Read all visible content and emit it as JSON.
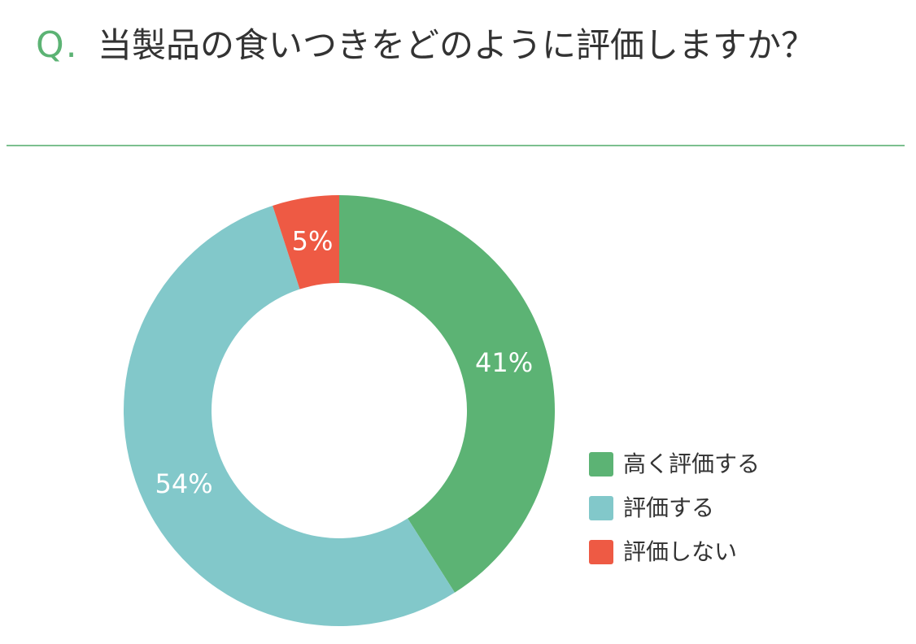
{
  "question": {
    "mark": "Q.",
    "text": "当製品の食いつきをどのように評価しますか？"
  },
  "chart_data": {
    "type": "pie",
    "variant": "donut",
    "start": "12 o'clock",
    "direction": "clockwise",
    "categories": [
      "高く評価する",
      "評価する",
      "評価しない"
    ],
    "values": [
      41,
      54,
      5
    ],
    "labels": [
      "41%",
      "54%",
      "5%"
    ],
    "colors": [
      "#5cb374",
      "#82c8ca",
      "#ee5a44"
    ],
    "legend_position": "right"
  }
}
